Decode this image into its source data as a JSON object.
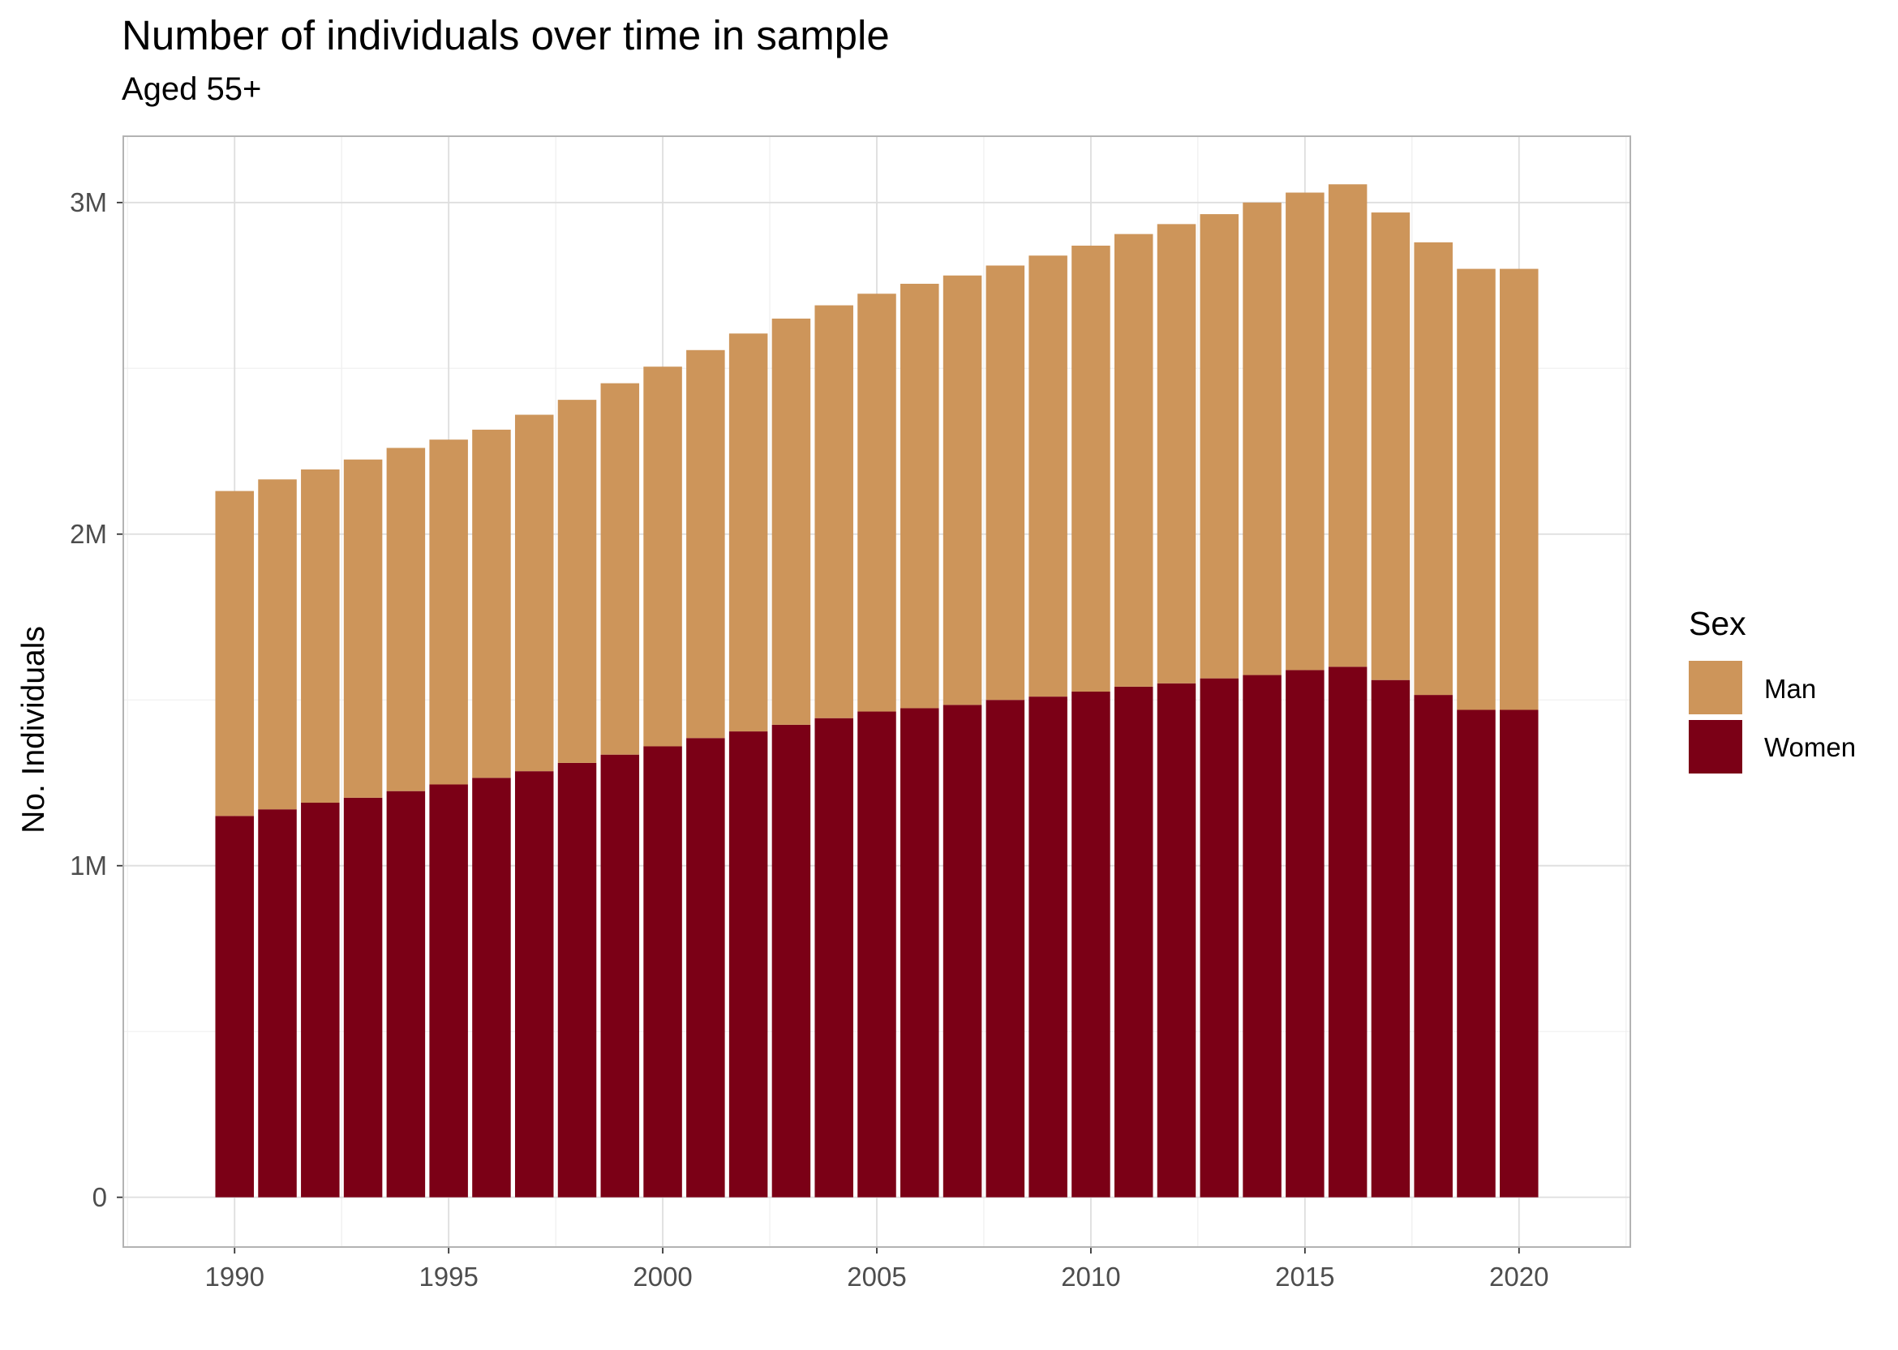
{
  "chart_data": {
    "type": "bar",
    "stacked": true,
    "title": "Number of individuals over time in sample",
    "subtitle": "Aged 55+",
    "xlabel": "",
    "ylabel": "No. Individuals",
    "x": [
      1990,
      1991,
      1992,
      1993,
      1994,
      1995,
      1996,
      1997,
      1998,
      1999,
      2000,
      2001,
      2002,
      2003,
      2004,
      2005,
      2006,
      2007,
      2008,
      2009,
      2010,
      2011,
      2012,
      2013,
      2014,
      2015,
      2016,
      2017,
      2018,
      2019,
      2020
    ],
    "xlim": [
      1987.4,
      2022.6
    ],
    "ylim": [
      -150000,
      3200000
    ],
    "x_ticks": [
      1990,
      1995,
      2000,
      2005,
      2010,
      2015,
      2020
    ],
    "y_ticks": [
      0,
      1000000,
      2000000,
      3000000
    ],
    "y_tick_labels": [
      "0",
      "1M",
      "2M",
      "3M"
    ],
    "series": [
      {
        "name": "Women",
        "color": "#7b0016",
        "values": [
          1150000,
          1170000,
          1190000,
          1205000,
          1225000,
          1245000,
          1265000,
          1285000,
          1310000,
          1335000,
          1360000,
          1385000,
          1405000,
          1425000,
          1445000,
          1465000,
          1475000,
          1485000,
          1500000,
          1510000,
          1525000,
          1540000,
          1550000,
          1565000,
          1575000,
          1590000,
          1600000,
          1560000,
          1515000,
          1470000,
          1470000
        ]
      },
      {
        "name": "Man",
        "color": "#cd955a",
        "values": [
          980000,
          995000,
          1005000,
          1020000,
          1035000,
          1040000,
          1050000,
          1075000,
          1095000,
          1120000,
          1145000,
          1170000,
          1200000,
          1225000,
          1245000,
          1260000,
          1280000,
          1295000,
          1310000,
          1330000,
          1345000,
          1365000,
          1385000,
          1400000,
          1425000,
          1440000,
          1455000,
          1410000,
          1365000,
          1330000,
          1330000
        ]
      }
    ],
    "legend": {
      "title": "Sex",
      "position": "right",
      "items": [
        {
          "label": "Man",
          "color": "#cd955a"
        },
        {
          "label": "Women",
          "color": "#7b0016"
        }
      ]
    },
    "grid": true
  }
}
